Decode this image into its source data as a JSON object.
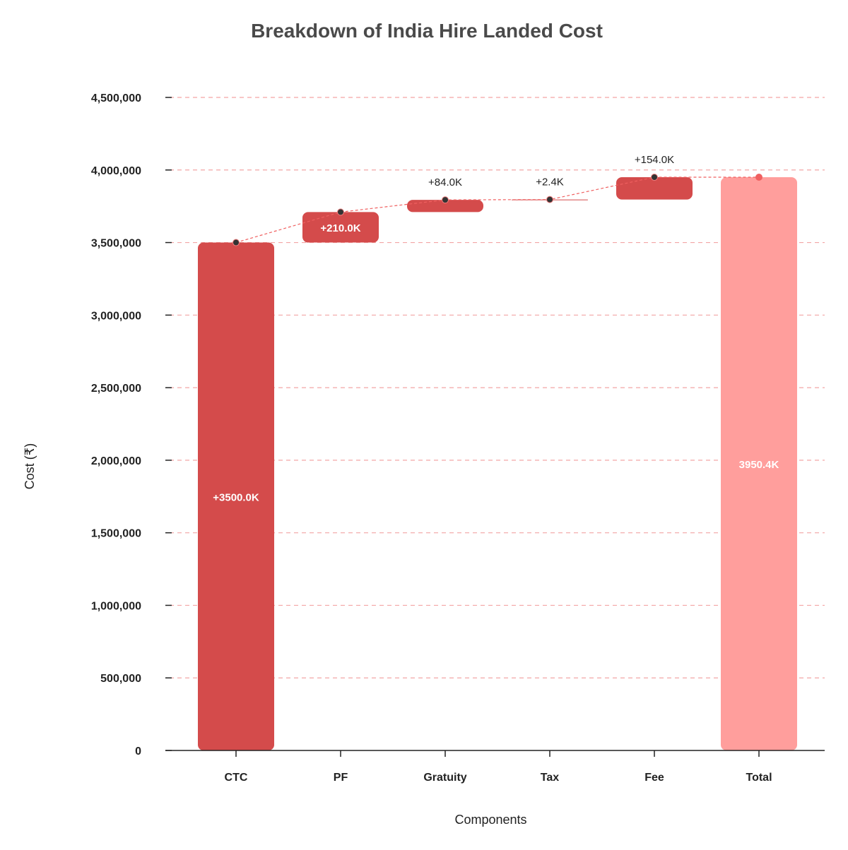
{
  "chart_data": {
    "type": "waterfall",
    "title": "Breakdown of India Hire Landed Cost",
    "xlabel": "Components",
    "ylabel": "Cost (₹)",
    "ylim": [
      0,
      4500000
    ],
    "yticks": [
      0,
      500000,
      1000000,
      1500000,
      2000000,
      2500000,
      3000000,
      3500000,
      4000000,
      4500000
    ],
    "ytick_labels": [
      "0",
      "500,000",
      "1,000,000",
      "1,500,000",
      "2,000,000",
      "2,500,000",
      "3,000,000",
      "3,500,000",
      "4,000,000",
      "4,500,000"
    ],
    "categories": [
      "CTC",
      "PF",
      "Gratuity",
      "Tax",
      "Fee",
      "Total"
    ],
    "values": [
      3500000,
      210000,
      84000,
      2400,
      154000,
      3950400
    ],
    "is_total": [
      false,
      false,
      false,
      false,
      false,
      true
    ],
    "data_labels": [
      "+3500.0K",
      "+210.0K",
      "+84.0K",
      "+2.4K",
      "+154.0K",
      "3950.4K"
    ],
    "grid": true,
    "colors": {
      "increase": "#d44b4b",
      "total": "#ff9e9c",
      "grid": "#f3a5a5",
      "connector": "#f06060",
      "marker": "#333333",
      "axis": "#222222"
    }
  }
}
